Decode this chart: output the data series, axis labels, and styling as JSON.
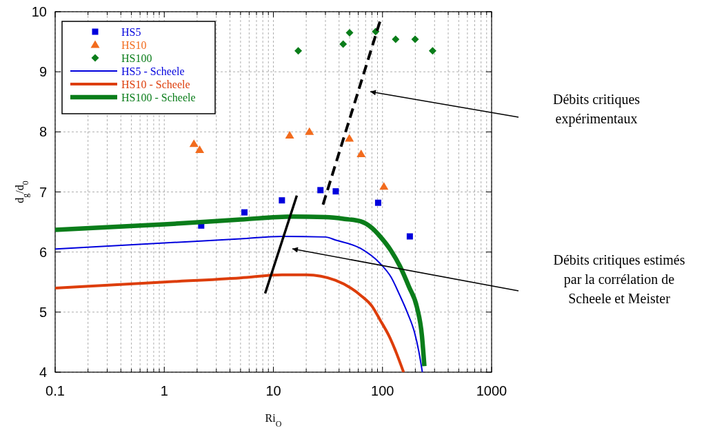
{
  "chart_data": {
    "type": "scatter",
    "xlabel": "Ri$_{O}$",
    "ylabel": "d$_{g}$/d$_{0}$",
    "log": "x",
    "xlim": [
      0.1,
      1000
    ],
    "xticks": [
      0.1,
      1,
      10,
      100,
      1000
    ],
    "ylim": [
      4,
      10
    ],
    "yticks": [
      4,
      5,
      6,
      7,
      8,
      9,
      10
    ],
    "grid": true,
    "legend": "top left",
    "series": [
      {
        "name": "HS5",
        "marker": "square",
        "color": "#0000dd",
        "x": [
          2.18,
          5.43,
          11.97,
          27.0,
          37.3,
          91.2,
          178
        ],
        "values": [
          6.44,
          6.66,
          6.86,
          7.03,
          7.01,
          6.82,
          6.26
        ]
      },
      {
        "name": "HS10",
        "marker": "triangle",
        "color": "#f26b1d",
        "x": [
          1.87,
          2.11,
          14.1,
          21.4,
          49.7,
          63.7,
          103
        ],
        "values": [
          7.8,
          7.7,
          7.94,
          8.0,
          7.89,
          7.63,
          7.09
        ]
      },
      {
        "name": "HS100",
        "marker": "diamond",
        "color": "#0a7d1a",
        "x": [
          16.9,
          43.6,
          49.9,
          86.5,
          132,
          199,
          288
        ],
        "values": [
          9.35,
          9.46,
          9.65,
          9.67,
          9.54,
          9.54,
          9.35
        ]
      },
      {
        "name": "HS5 - Scheele",
        "type": "line",
        "line_style": "solid",
        "color": "#0000dd",
        "x": [
          0.1,
          1,
          5,
          12,
          30,
          37,
          63,
          95,
          120,
          144,
          170,
          196,
          215,
          232
        ],
        "values": [
          6.05,
          6.15,
          6.22,
          6.26,
          6.25,
          6.2,
          6.06,
          5.81,
          5.58,
          5.28,
          4.98,
          4.67,
          4.35,
          4.0
        ]
      },
      {
        "name": "HS10 - Scheele",
        "type": "line",
        "line_style": "solid",
        "color": "#dd3d0a",
        "x": [
          0.1,
          1,
          5,
          12,
          20,
          37,
          63,
          80,
          95,
          115,
          130,
          156
        ],
        "values": [
          5.4,
          5.5,
          5.57,
          5.62,
          5.62,
          5.53,
          5.28,
          5.1,
          4.87,
          4.6,
          4.38,
          4.0
        ]
      },
      {
        "name": "HS100 - Scheele",
        "type": "line",
        "line_style": "solid",
        "color": "#0a7d1a",
        "x": [
          0.1,
          1,
          5,
          15,
          30,
          45,
          63,
          80,
          95,
          120,
          144,
          175,
          207,
          230,
          242
        ],
        "values": [
          6.37,
          6.46,
          6.54,
          6.59,
          6.58,
          6.55,
          6.51,
          6.4,
          6.26,
          6.02,
          5.77,
          5.42,
          5.08,
          4.6,
          4.1
        ]
      },
      {
        "type": "line",
        "line_style": "solid",
        "color": "#000000",
        "x": [
          8.4,
          16.4
        ],
        "values": [
          5.31,
          6.94
        ]
      },
      {
        "type": "line",
        "line_style": "dashed",
        "color": "#000000",
        "x": [
          28.5,
          97.5
        ],
        "values": [
          6.79,
          9.91
        ]
      }
    ],
    "annotations": [
      "Débits critiques\nexpérimentaux",
      "Débits critiques estimés\npar la corrélation de\nScheele et Meister"
    ]
  }
}
